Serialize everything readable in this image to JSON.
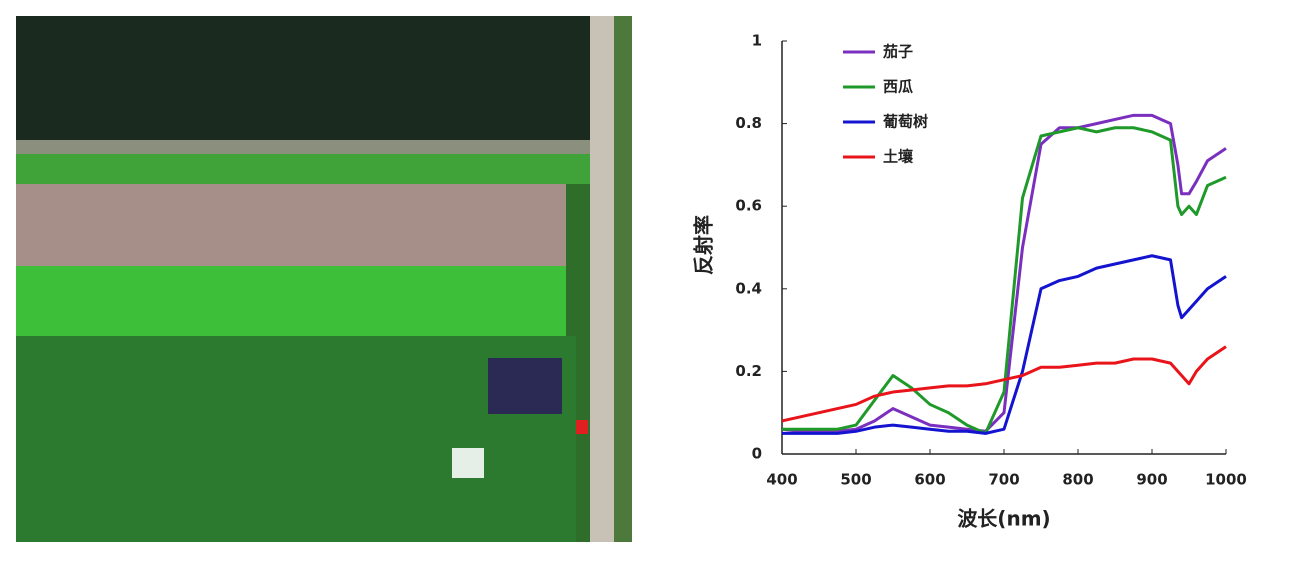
{
  "chart_data": {
    "type": "line",
    "x_label": "波长(nm)",
    "y_label": "反射率",
    "x": [
      400,
      425,
      450,
      475,
      500,
      525,
      550,
      575,
      600,
      625,
      650,
      675,
      700,
      725,
      750,
      775,
      800,
      825,
      850,
      875,
      900,
      925,
      935,
      940,
      950,
      960,
      975,
      1000
    ],
    "series": [
      {
        "name": "茄子",
        "color": "#7b2fbf",
        "values": [
          0.06,
          0.055,
          0.055,
          0.055,
          0.06,
          0.08,
          0.11,
          0.09,
          0.07,
          0.065,
          0.06,
          0.055,
          0.1,
          0.5,
          0.75,
          0.79,
          0.79,
          0.8,
          0.81,
          0.82,
          0.82,
          0.8,
          0.7,
          0.63,
          0.63,
          0.66,
          0.71,
          0.74
        ]
      },
      {
        "name": "西瓜",
        "color": "#1f9a2a",
        "values": [
          0.06,
          0.06,
          0.06,
          0.06,
          0.07,
          0.13,
          0.19,
          0.16,
          0.12,
          0.1,
          0.07,
          0.05,
          0.15,
          0.62,
          0.77,
          0.78,
          0.79,
          0.78,
          0.79,
          0.79,
          0.78,
          0.76,
          0.6,
          0.58,
          0.6,
          0.58,
          0.65,
          0.67
        ]
      },
      {
        "name": "葡萄树",
        "color": "#1414d0",
        "values": [
          0.05,
          0.05,
          0.05,
          0.05,
          0.055,
          0.065,
          0.07,
          0.065,
          0.06,
          0.055,
          0.055,
          0.05,
          0.06,
          0.2,
          0.4,
          0.42,
          0.43,
          0.45,
          0.46,
          0.47,
          0.48,
          0.47,
          0.36,
          0.33,
          0.35,
          0.37,
          0.4,
          0.43
        ]
      },
      {
        "name": "土壤",
        "color": "#e8141a",
        "values": [
          0.08,
          0.09,
          0.1,
          0.11,
          0.12,
          0.14,
          0.15,
          0.155,
          0.16,
          0.165,
          0.165,
          0.17,
          0.18,
          0.19,
          0.21,
          0.21,
          0.215,
          0.22,
          0.22,
          0.23,
          0.23,
          0.22,
          0.2,
          0.19,
          0.17,
          0.2,
          0.23,
          0.26
        ]
      }
    ],
    "xlim": [
      400,
      1000
    ],
    "xticks": [
      400,
      500,
      600,
      700,
      800,
      900,
      1000
    ],
    "ylim": [
      0,
      1
    ],
    "yticks": [
      0,
      0.2,
      0.4,
      0.6,
      0.8,
      1
    ],
    "grid": false
  }
}
